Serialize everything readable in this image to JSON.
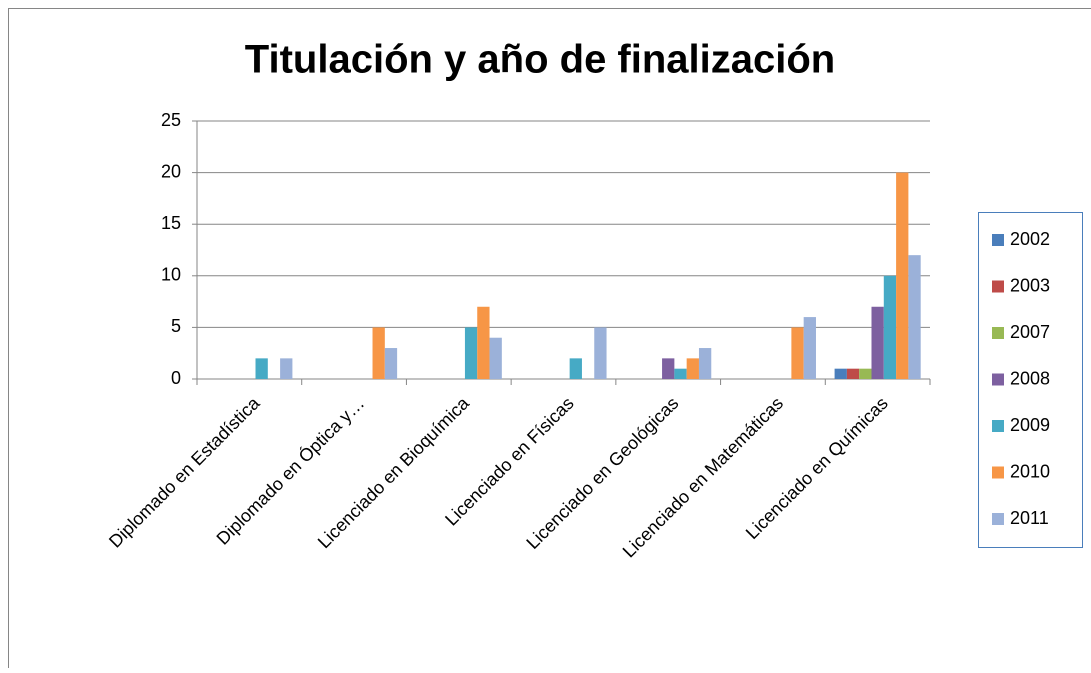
{
  "chart_data": {
    "type": "bar",
    "title": "Titulación y año de finalización",
    "categories": [
      "Diplomado en Estadística",
      "Diplomado en Óptica y…",
      "Licenciado en Bioquímica",
      "Licenciado en Físicas",
      "Licenciado en Geológicas",
      "Licenciado en Matemáticas",
      "Licenciado en Químicas"
    ],
    "series": [
      {
        "name": "2002",
        "color": "#4a7ebb",
        "values": [
          null,
          null,
          null,
          null,
          null,
          null,
          1
        ]
      },
      {
        "name": "2003",
        "color": "#be4b48",
        "values": [
          null,
          null,
          null,
          null,
          null,
          null,
          1
        ]
      },
      {
        "name": "2007",
        "color": "#98b954",
        "values": [
          null,
          null,
          null,
          null,
          null,
          null,
          1
        ]
      },
      {
        "name": "2008",
        "color": "#7d60a0",
        "values": [
          null,
          null,
          null,
          null,
          2,
          null,
          7
        ]
      },
      {
        "name": "2009",
        "color": "#46aac5",
        "values": [
          2,
          null,
          5,
          2,
          1,
          null,
          10
        ]
      },
      {
        "name": "2010",
        "color": "#f79646",
        "values": [
          null,
          5,
          7,
          null,
          2,
          5,
          20
        ]
      },
      {
        "name": "2011",
        "color": "#9bb1d9",
        "values": [
          2,
          3,
          4,
          5,
          3,
          6,
          12
        ]
      }
    ],
    "ylim": [
      0,
      25
    ],
    "yticks": [
      0,
      5,
      10,
      15,
      20,
      25
    ],
    "grid": true,
    "legend": "right"
  }
}
